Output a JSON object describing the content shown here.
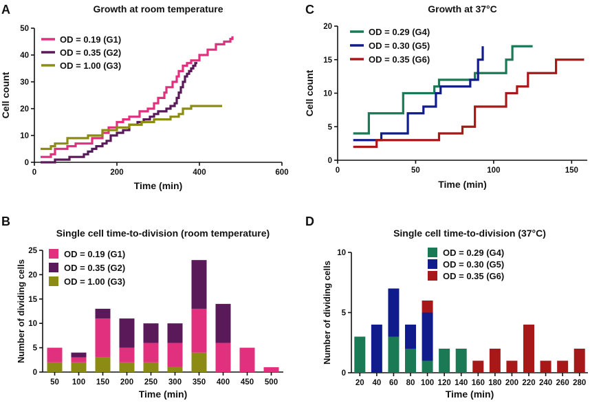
{
  "panels": [
    {
      "label": "A",
      "chart_data": {
        "type": "line",
        "step": true,
        "title": "Growth at room temperature",
        "xlabel": "Time (min)",
        "ylabel": "Cell  count",
        "xlim": [
          0,
          600
        ],
        "ylim": [
          0,
          50
        ],
        "xticks": [
          0,
          200,
          400,
          600
        ],
        "yticks": [
          0,
          10,
          20,
          30,
          40,
          50
        ],
        "legend_position": "top-left",
        "series": [
          {
            "name": "OD = 0.19 (G1)",
            "color": "#e0307e",
            "x": [
              15,
              40,
              50,
              80,
              100,
              140,
              165,
              180,
              200,
              215,
              230,
              255,
              275,
              290,
              300,
              315,
              320,
              335,
              345,
              350,
              360,
              370,
              380,
              400,
              420,
              440,
              460,
              475,
              480
            ],
            "y": [
              2,
              3,
              5,
              6,
              7,
              9,
              11,
              13,
              15,
              16,
              17,
              19,
              20,
              22,
              24,
              26,
              28,
              30,
              32,
              34,
              36,
              37,
              38,
              40,
              42,
              44,
              45,
              46,
              47
            ]
          },
          {
            "name": "OD = 0.35 (G2)",
            "color": "#5a1a5a",
            "x": [
              15,
              50,
              85,
              120,
              130,
              140,
              150,
              165,
              175,
              185,
              200,
              215,
              230,
              250,
              265,
              280,
              290,
              300,
              310,
              320,
              330,
              340,
              345,
              350,
              355,
              360,
              365,
              370,
              375,
              380,
              385,
              390,
              395
            ],
            "y": [
              0,
              1,
              2,
              3,
              4,
              5,
              6,
              7,
              8,
              10,
              11,
              12,
              14,
              15,
              16,
              17,
              18,
              19,
              19,
              20,
              21,
              22,
              24,
              26,
              28,
              30,
              32,
              33,
              34,
              35,
              36,
              37,
              37
            ]
          },
          {
            "name": "OD = 1.00 (G3)",
            "color": "#8c8c14",
            "x": [
              15,
              40,
              50,
              80,
              130,
              165,
              200,
              230,
              260,
              290,
              330,
              350,
              360,
              380,
              455
            ],
            "y": [
              5,
              6,
              7,
              9,
              10,
              12,
              13,
              14,
              15,
              16,
              17,
              18,
              20,
              21,
              21
            ]
          }
        ]
      }
    },
    {
      "label": "C",
      "chart_data": {
        "type": "line",
        "step": true,
        "title": "Growth at 37°C",
        "xlabel": "Time (min)",
        "ylabel": "Cell  count",
        "xlim": [
          0,
          160
        ],
        "ylim": [
          0,
          20
        ],
        "xticks": [
          0,
          50,
          100,
          150
        ],
        "yticks": [
          0,
          5,
          10,
          15,
          20
        ],
        "legend_position": "top-left",
        "series": [
          {
            "name": "OD = 0.29 (G4)",
            "color": "#1a7a55",
            "x": [
              10,
              20,
              42,
              62,
              65,
              88,
              90,
              108,
              112,
              125
            ],
            "y": [
              4,
              7,
              10,
              11,
              12,
              13,
              13,
              15,
              17,
              17
            ]
          },
          {
            "name": "OD = 0.30 (G5)",
            "color": "#111c8c",
            "x": [
              10,
              28,
              45,
              55,
              63,
              66,
              85,
              90,
              93
            ],
            "y": [
              3,
              4,
              7,
              8,
              10,
              11,
              12,
              15,
              17
            ]
          },
          {
            "name": "OD = 0.35 (G6)",
            "color": "#a81818",
            "x": [
              10,
              25,
              65,
              80,
              88,
              108,
              115,
              122,
              140,
              158
            ],
            "y": [
              2,
              3,
              4,
              5,
              8,
              10,
              11,
              13,
              15,
              15
            ]
          }
        ]
      }
    },
    {
      "label": "B",
      "chart_data": {
        "type": "bar",
        "stacked": true,
        "title": "Single cell time-to-division (room temperature)",
        "xlabel": "Time (min)",
        "ylabel": "Number of dividing cells",
        "ylim": [
          0,
          25
        ],
        "yticks": [
          0,
          5,
          10,
          15,
          20,
          25
        ],
        "categories": [
          "50",
          "100",
          "150",
          "200",
          "250",
          "300",
          "350",
          "400",
          "450",
          "500"
        ],
        "legend_position": "top-left",
        "series": [
          {
            "name": "OD = 0.19 (G1)",
            "color": "#e0307e",
            "values": [
              3,
              1,
              8,
              3,
              4,
              5,
              9,
              6,
              5,
              1
            ]
          },
          {
            "name": "OD = 0.35 (G2)",
            "color": "#5a1a5a",
            "values": [
              0,
              1,
              2,
              6,
              4,
              4,
              10,
              8,
              0,
              0
            ]
          },
          {
            "name": "OD = 1.00 (G3)",
            "color": "#8c8c14",
            "values": [
              2,
              2,
              3,
              2,
              2,
              1,
              4,
              0,
              0,
              0
            ]
          }
        ]
      }
    },
    {
      "label": "D",
      "chart_data": {
        "type": "bar",
        "stacked": true,
        "title": "Single cell time-to-division (37°C)",
        "xlabel": "Time (min)",
        "ylabel": "Number of dividing cells",
        "ylim": [
          0,
          10
        ],
        "yticks": [
          0,
          5,
          10
        ],
        "categories": [
          "20",
          "40",
          "60",
          "80",
          "100",
          "120",
          "140",
          "160",
          "180",
          "200",
          "220",
          "240",
          "260",
          "280"
        ],
        "legend_position": "top-left",
        "series": [
          {
            "name": "OD = 0.29 (G4)",
            "color": "#1a7a55",
            "values": [
              3,
              0,
              3,
              2,
              1,
              2,
              2,
              0,
              0,
              0,
              0,
              0,
              0,
              0
            ]
          },
          {
            "name": "OD = 0.30 (G5)",
            "color": "#111c8c",
            "values": [
              0,
              4,
              4,
              2,
              4,
              0,
              0,
              0,
              0,
              0,
              0,
              0,
              0,
              0
            ]
          },
          {
            "name": "OD = 0.35 (G6)",
            "color": "#a81818",
            "values": [
              0,
              0,
              0,
              0,
              1,
              0,
              0,
              1,
              2,
              1,
              4,
              1,
              1,
              2
            ]
          }
        ]
      }
    }
  ]
}
